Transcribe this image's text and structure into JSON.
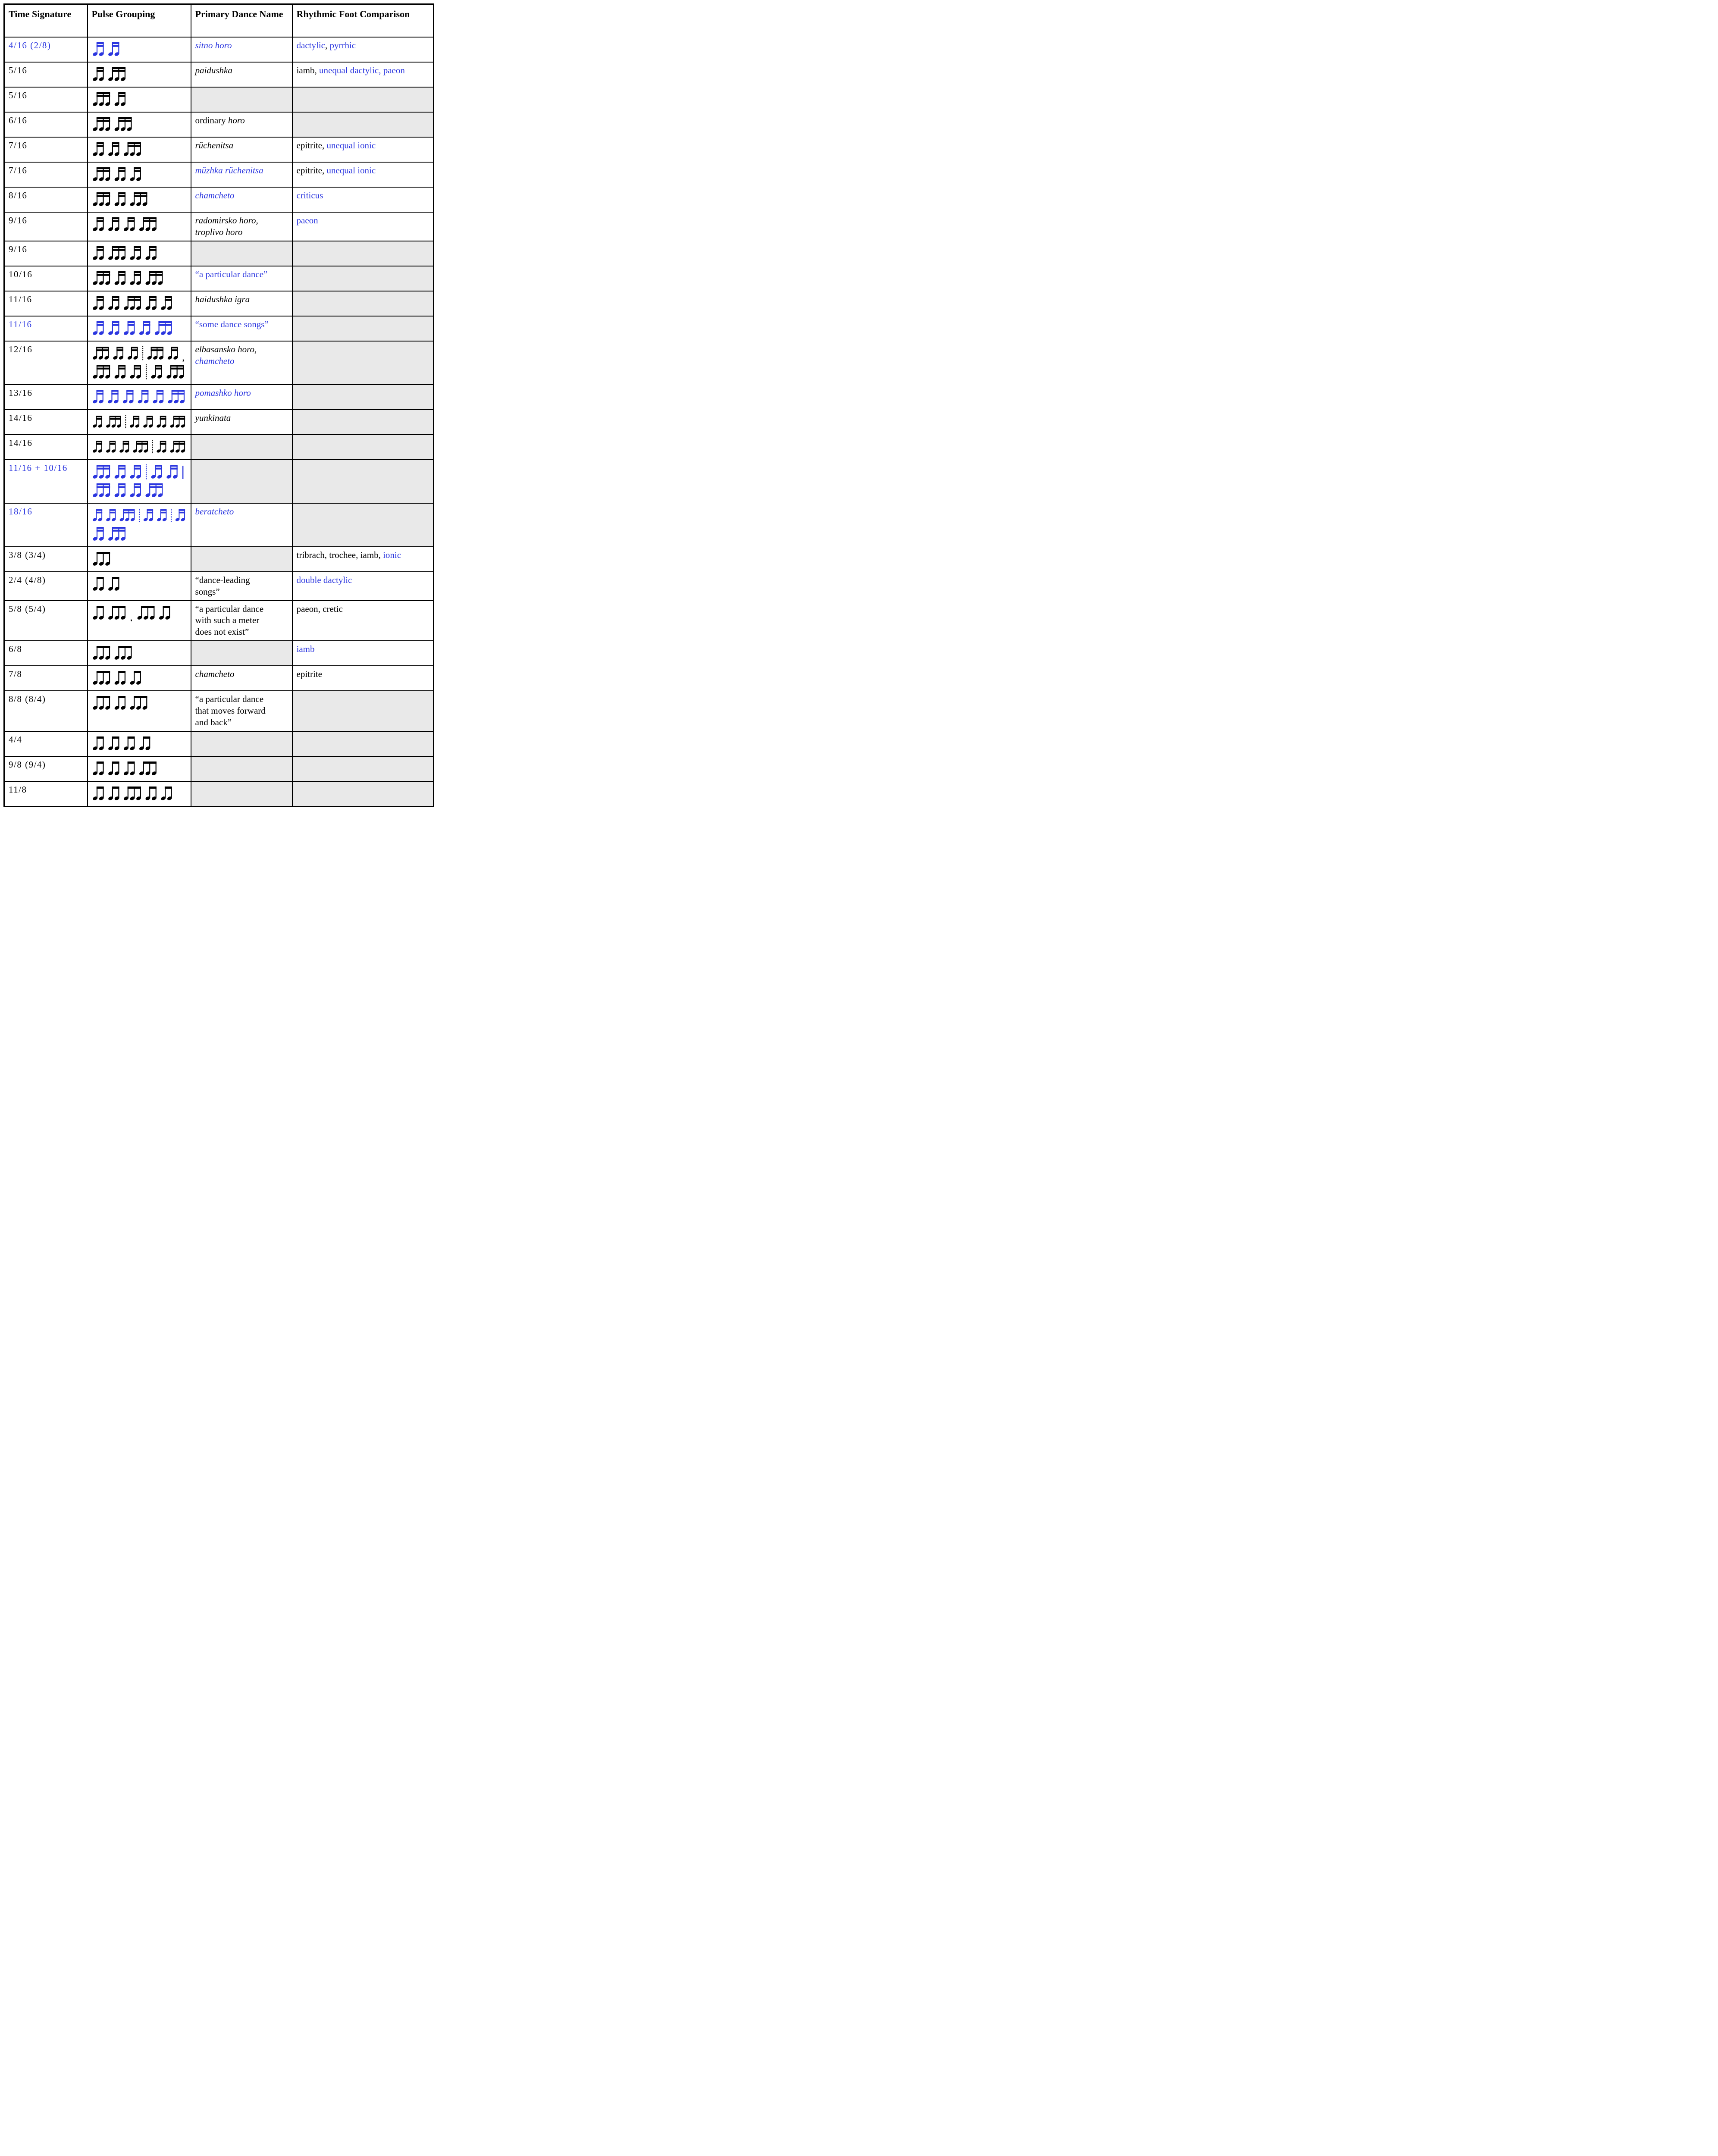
{
  "colors": {
    "blue": "#2b36df",
    "black": "#000000",
    "empty_cell_gray": "#e9e9e9"
  },
  "header": {
    "time": "Time Signature",
    "pulse": "Pulse Grouping",
    "name": "Primary Dance Name",
    "comp": "Rhythmic Foot Comparison"
  },
  "legend": {
    "pulse_token_meaning": "numbers = beamed note group size; beams 2 = sixteenth notes, beams 1 = eighth notes; | = dotted divider; ! = solid barline; , = comma"
  },
  "rows": [
    {
      "time": {
        "t": "4/16 (2/8)",
        "c": "blue"
      },
      "pulse": {
        "beams": 2,
        "c": "blue",
        "lines": [
          [
            "2",
            "2"
          ]
        ]
      },
      "name": {
        "segs": [
          {
            "t": "sitno horo",
            "i": true,
            "c": "blue"
          }
        ]
      },
      "comp": {
        "segs": [
          {
            "t": "dactylic",
            "c": "blue"
          },
          {
            "t": ", "
          },
          {
            "t": "pyrrhic",
            "c": "blue"
          }
        ]
      }
    },
    {
      "time": {
        "t": "5/16"
      },
      "pulse": {
        "beams": 2,
        "lines": [
          [
            "2",
            "3"
          ]
        ]
      },
      "name": {
        "segs": [
          {
            "t": "paidushka",
            "i": true
          }
        ]
      },
      "comp": {
        "segs": [
          {
            "t": "iamb, "
          },
          {
            "t": "unequal dactylic, ",
            "c": "blue"
          },
          {
            "t": "paeon",
            "c": "blue"
          }
        ]
      }
    },
    {
      "time": {
        "t": "5/16"
      },
      "pulse": {
        "beams": 2,
        "lines": [
          [
            "3",
            "2"
          ]
        ]
      },
      "name": {
        "gray": true
      },
      "comp": {
        "gray": true
      }
    },
    {
      "time": {
        "t": "6/16"
      },
      "pulse": {
        "beams": 2,
        "lines": [
          [
            "3",
            "3"
          ]
        ]
      },
      "name": {
        "segs": [
          {
            "t": "ordinary "
          },
          {
            "t": "horo",
            "i": true
          }
        ]
      },
      "comp": {
        "gray": true
      }
    },
    {
      "time": {
        "t": "7/16"
      },
      "pulse": {
        "beams": 2,
        "lines": [
          [
            "2",
            "2",
            "3"
          ]
        ]
      },
      "name": {
        "segs": [
          {
            "t": "rŭchenitsa",
            "i": true
          }
        ]
      },
      "comp": {
        "segs": [
          {
            "t": "epitrite, "
          },
          {
            "t": "unequal ionic",
            "c": "blue"
          }
        ]
      }
    },
    {
      "time": {
        "t": "7/16"
      },
      "pulse": {
        "beams": 2,
        "lines": [
          [
            "3",
            "2",
            "2"
          ]
        ]
      },
      "name": {
        "segs": [
          {
            "t": "mŭzhka rŭchenitsa",
            "i": true,
            "c": "blue"
          }
        ]
      },
      "comp": {
        "segs": [
          {
            "t": "epitrite, "
          },
          {
            "t": "unequal ionic",
            "c": "blue"
          }
        ]
      }
    },
    {
      "time": {
        "t": "8/16"
      },
      "pulse": {
        "beams": 2,
        "lines": [
          [
            "3",
            "2",
            "3"
          ]
        ]
      },
      "name": {
        "segs": [
          {
            "t": "chamcheto",
            "i": true,
            "c": "blue"
          }
        ]
      },
      "comp": {
        "segs": [
          {
            "t": "criticus",
            "c": "blue"
          }
        ]
      }
    },
    {
      "time": {
        "t": "9/16"
      },
      "pulse": {
        "beams": 2,
        "lines": [
          [
            "2",
            "2",
            "2",
            "3"
          ]
        ]
      },
      "name": {
        "segs": [
          {
            "t": "radomirsko horo,",
            "i": true,
            "br": true
          },
          {
            "t": "troplivo horo",
            "i": true
          }
        ]
      },
      "comp": {
        "segs": [
          {
            "t": "paeon",
            "c": "blue"
          }
        ]
      }
    },
    {
      "time": {
        "t": "9/16"
      },
      "pulse": {
        "beams": 2,
        "lines": [
          [
            "2",
            "3",
            "2",
            "2"
          ]
        ]
      },
      "name": {
        "gray": true
      },
      "comp": {
        "gray": true
      }
    },
    {
      "time": {
        "t": "10/16"
      },
      "pulse": {
        "beams": 2,
        "lines": [
          [
            "3",
            "2",
            "2",
            "3"
          ]
        ]
      },
      "name": {
        "segs": [
          {
            "t": "“a particular dance”",
            "c": "blue"
          }
        ]
      },
      "comp": {
        "gray": true
      }
    },
    {
      "time": {
        "t": "11/16"
      },
      "pulse": {
        "beams": 2,
        "lines": [
          [
            "2",
            "2",
            "3",
            "2",
            "2"
          ]
        ]
      },
      "name": {
        "segs": [
          {
            "t": "haidushka igra",
            "i": true
          }
        ]
      },
      "comp": {
        "gray": true
      }
    },
    {
      "time": {
        "t": "11/16",
        "c": "blue"
      },
      "pulse": {
        "beams": 2,
        "c": "blue",
        "lines": [
          [
            "2",
            "2",
            "2",
            "2",
            "3"
          ]
        ]
      },
      "name": {
        "segs": [
          {
            "t": "“some dance songs”",
            "c": "blue"
          }
        ]
      },
      "comp": {
        "gray": true
      }
    },
    {
      "time": {
        "t": "12/16"
      },
      "pulse": {
        "beams": 2,
        "lines": [
          [
            "3",
            "2",
            "2",
            "|",
            "3",
            "2",
            ","
          ],
          [
            "3",
            "2",
            "2",
            "|",
            "2",
            "3"
          ]
        ]
      },
      "name": {
        "segs": [
          {
            "t": "elbasansko horo,",
            "i": true,
            "br": true
          },
          {
            "t": "chamcheto",
            "i": true,
            "c": "blue"
          }
        ]
      },
      "comp": {
        "gray": true
      }
    },
    {
      "time": {
        "t": "13/16"
      },
      "pulse": {
        "beams": 2,
        "c": "blue",
        "lines": [
          [
            "2",
            "2",
            "2",
            "2",
            "2",
            "3"
          ]
        ]
      },
      "name": {
        "segs": [
          {
            "t": "pomashko horo",
            "i": true,
            "c": "blue"
          }
        ]
      },
      "comp": {
        "gray": true
      }
    },
    {
      "time": {
        "t": "14/16"
      },
      "pulse": {
        "beams": 2,
        "lines": [
          [
            "2",
            "3",
            "|",
            "2",
            "2",
            "2",
            "3"
          ]
        ]
      },
      "name": {
        "segs": [
          {
            "t": "yunkinata",
            "i": true
          }
        ]
      },
      "comp": {
        "gray": true
      }
    },
    {
      "time": {
        "t": "14/16"
      },
      "pulse": {
        "beams": 2,
        "lines": [
          [
            "2",
            "2",
            "2",
            "3",
            "|",
            "2",
            "3"
          ]
        ]
      },
      "name": {
        "gray": true
      },
      "comp": {
        "gray": true
      }
    },
    {
      "time": {
        "t": "11/16 + 10/16",
        "c": "blue"
      },
      "pulse": {
        "beams": 2,
        "c": "blue",
        "lines": [
          [
            "3",
            "2",
            "2",
            "|",
            "2",
            "2",
            "!"
          ],
          [
            "3",
            "2",
            "2",
            "3"
          ]
        ]
      },
      "name": {
        "gray": true
      },
      "comp": {
        "gray": true
      }
    },
    {
      "time": {
        "t": "18/16",
        "c": "blue"
      },
      "pulse": {
        "beams": 2,
        "c": "blue",
        "lines": [
          [
            "2",
            "2",
            "3",
            "|",
            "2",
            "2",
            "|",
            "2"
          ],
          [
            "2",
            "3"
          ]
        ]
      },
      "name": {
        "segs": [
          {
            "t": "beratcheto",
            "i": true,
            "c": "blue"
          }
        ]
      },
      "comp": {
        "gray": true
      }
    },
    {
      "time": {
        "t": "3/8 (3/4)"
      },
      "pulse": {
        "beams": 1,
        "lines": [
          [
            "3"
          ]
        ]
      },
      "name": {
        "gray": true
      },
      "comp": {
        "segs": [
          {
            "t": "tribrach, trochee, iamb, "
          },
          {
            "t": "ionic",
            "c": "blue"
          }
        ]
      }
    },
    {
      "time": {
        "t": "2/4 (4/8)"
      },
      "pulse": {
        "beams": 1,
        "lines": [
          [
            "2",
            "2"
          ]
        ]
      },
      "name": {
        "segs": [
          {
            "t": "“dance-leading",
            "br": true
          },
          {
            "t": "songs”"
          }
        ]
      },
      "comp": {
        "segs": [
          {
            "t": "double dactylic",
            "c": "blue"
          }
        ]
      }
    },
    {
      "time": {
        "t": "5/8 (5/4)"
      },
      "pulse": {
        "beams": 1,
        "lines": [
          [
            "2",
            "3",
            ",",
            "3",
            "2"
          ]
        ]
      },
      "name": {
        "segs": [
          {
            "t": "“a particular dance",
            "br": true
          },
          {
            "t": "with such a meter",
            "br": true
          },
          {
            "t": "does not exist”"
          }
        ]
      },
      "comp": {
        "segs": [
          {
            "t": "paeon, cretic"
          }
        ]
      }
    },
    {
      "time": {
        "t": "6/8"
      },
      "pulse": {
        "beams": 1,
        "lines": [
          [
            "3",
            "3"
          ]
        ]
      },
      "name": {
        "gray": true
      },
      "comp": {
        "segs": [
          {
            "t": "iamb",
            "c": "blue"
          }
        ]
      }
    },
    {
      "time": {
        "t": "7/8"
      },
      "pulse": {
        "beams": 1,
        "lines": [
          [
            "3",
            "2",
            "2"
          ]
        ]
      },
      "name": {
        "segs": [
          {
            "t": "chamcheto",
            "i": true
          }
        ]
      },
      "comp": {
        "segs": [
          {
            "t": "epitrite"
          }
        ]
      }
    },
    {
      "time": {
        "t": "8/8 (8/4)"
      },
      "pulse": {
        "beams": 1,
        "lines": [
          [
            "3",
            "2",
            "3"
          ]
        ]
      },
      "name": {
        "segs": [
          {
            "t": "“a particular dance",
            "br": true
          },
          {
            "t": "that moves forward",
            "br": true
          },
          {
            "t": "and back”"
          }
        ]
      },
      "comp": {
        "gray": true
      }
    },
    {
      "time": {
        "t": "4/4"
      },
      "pulse": {
        "beams": 1,
        "lines": [
          [
            "2",
            "2",
            "2",
            "2"
          ]
        ]
      },
      "name": {
        "gray": true
      },
      "comp": {
        "gray": true
      }
    },
    {
      "time": {
        "t": "9/8 (9/4)"
      },
      "pulse": {
        "beams": 1,
        "lines": [
          [
            "2",
            "2",
            "2",
            "3"
          ]
        ]
      },
      "name": {
        "gray": true
      },
      "comp": {
        "gray": true
      }
    },
    {
      "time": {
        "t": "11/8"
      },
      "pulse": {
        "beams": 1,
        "lines": [
          [
            "2",
            "2",
            "3",
            "2",
            "2"
          ]
        ]
      },
      "name": {
        "gray": true
      },
      "comp": {
        "gray": true
      }
    }
  ]
}
